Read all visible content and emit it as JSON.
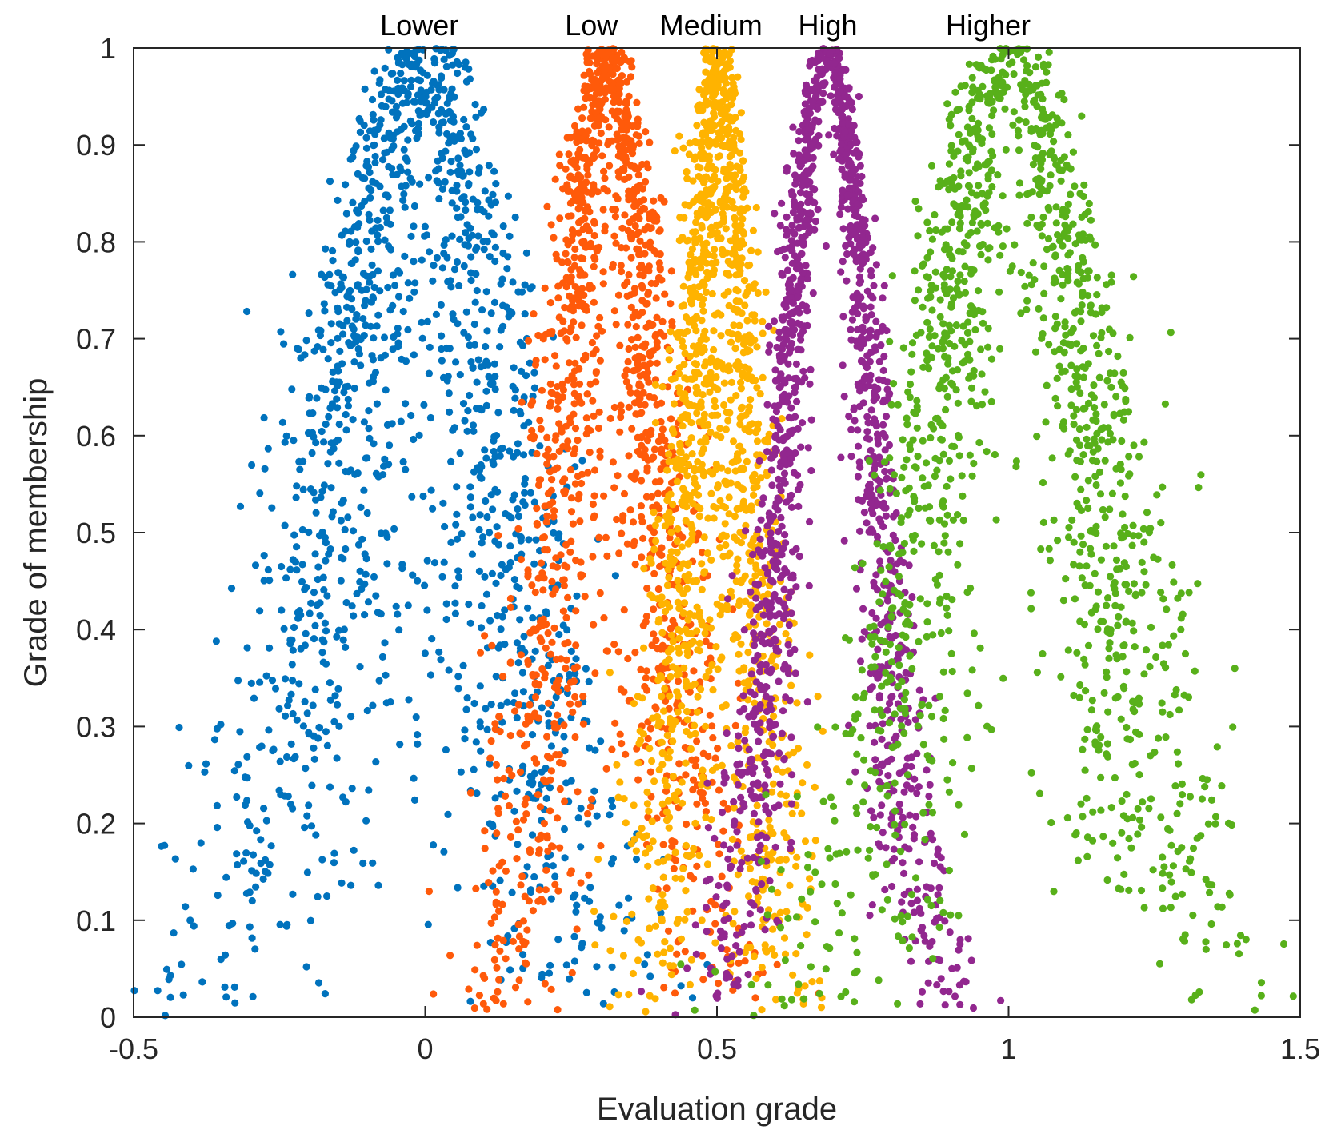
{
  "chart_data": {
    "type": "scatter",
    "title": "",
    "xlabel": "Evaluation grade",
    "ylabel": "Grade of membership",
    "xlim": [
      -0.5,
      1.5
    ],
    "ylim": [
      0,
      1
    ],
    "xticks": [
      -0.5,
      0,
      0.5,
      1,
      1.5
    ],
    "xtick_labels": [
      "-0.5",
      "0",
      "0.5",
      "1",
      "1.5"
    ],
    "yticks": [
      0,
      0.1,
      0.2,
      0.3,
      0.4,
      0.5,
      0.6,
      0.7,
      0.8,
      0.9,
      1
    ],
    "ytick_labels": [
      "0",
      "0.1",
      "0.2",
      "0.3",
      "0.4",
      "0.5",
      "0.6",
      "0.7",
      "0.8",
      "0.9",
      "1"
    ],
    "grid": false,
    "legend": "none",
    "series": [
      {
        "name": "Lower",
        "color": "#0072BD",
        "peak": 0,
        "left_base": -0.42,
        "right_base": 0.33,
        "spread": 0.022,
        "points": 1400
      },
      {
        "name": "Low",
        "color": "#FF5A0A",
        "peak": 0.31,
        "left_base": 0.1,
        "right_base": 0.55,
        "spread": 0.012,
        "points": 1400
      },
      {
        "name": "Medium",
        "color": "#FFB300",
        "peak": 0.5,
        "left_base": 0.36,
        "right_base": 0.64,
        "spread": 0.009,
        "points": 1400
      },
      {
        "name": "High",
        "color": "#92278F",
        "peak": 0.69,
        "left_base": 0.47,
        "right_base": 0.92,
        "spread": 0.007,
        "points": 1400
      },
      {
        "name": "Higher",
        "color": "#58B01A",
        "peak": 1.0,
        "left_base": 0.62,
        "right_base": 1.42,
        "spread": 0.018,
        "points": 1400
      }
    ],
    "annotations": [
      {
        "text": "Lower",
        "x": -0.01
      },
      {
        "text": "Low",
        "x": 0.285
      },
      {
        "text": "Medium",
        "x": 0.49
      },
      {
        "text": "High",
        "x": 0.69
      },
      {
        "text": "Higher",
        "x": 0.965
      }
    ]
  }
}
